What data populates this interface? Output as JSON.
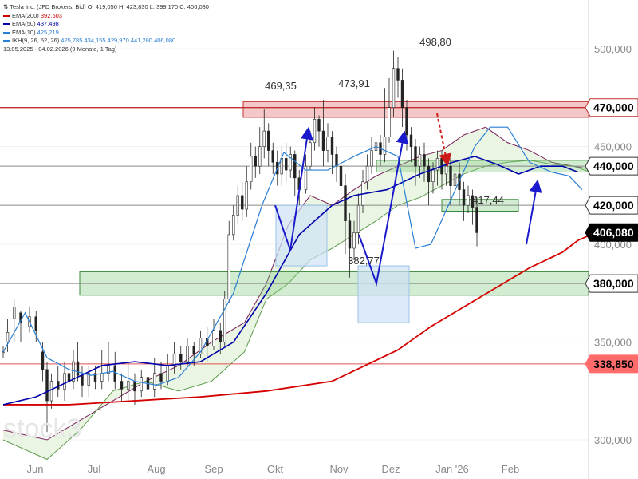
{
  "header": {
    "line1": "Tesla Inc. (JFD Brokers, Bid)  O: 419,050  H: 423,830  L: 399,170  C: 406,080",
    "range_text": "13.05.2025 - 04.02.2026  (9 Monate, 1 Tag)"
  },
  "legend": [
    {
      "label": "EMA(200)",
      "value": "392,603",
      "color": "#d40000"
    },
    {
      "label": "EMA(50)",
      "value": "437,498",
      "color": "#0000aa"
    },
    {
      "label": "EMA(10)",
      "value": "425,219",
      "color": "#2a7fd4"
    },
    {
      "label": "IKH(9, 26, 52, 26)",
      "value": "425,785  434,155  429,970  441,280  406,080",
      "color": "#2a7fd4"
    }
  ],
  "watermark": "stock3",
  "chart_data": {
    "type": "candlestick",
    "instrument": "Tesla Inc. (JFD Brokers, Bid)",
    "ohlc_last": {
      "open": 419.05,
      "high": 423.83,
      "low": 399.17,
      "close": 406.08
    },
    "x_months": [
      "Jun",
      "Jul",
      "Aug",
      "Sep",
      "Okt",
      "Nov",
      "Dez",
      "Jan '26",
      "Feb"
    ],
    "y_ticks": [
      300,
      350,
      400,
      450,
      500
    ],
    "y_tick_labels": [
      "300,000",
      "350,000",
      "400,000",
      "450,000",
      "500,000"
    ],
    "ylim": [
      280,
      525
    ],
    "price_tags": [
      {
        "value": 470.0,
        "label": "470,000"
      },
      {
        "value": 440.0,
        "label": "440,000"
      },
      {
        "value": 420.0,
        "label": "420,000"
      },
      {
        "value": 406.08,
        "label": "406,080",
        "current": true
      },
      {
        "value": 380.0,
        "label": "380,000"
      },
      {
        "value": 338.85,
        "label": "338,850",
        "red": true
      }
    ],
    "annotations": [
      {
        "label": "469,35",
        "value": 469.35
      },
      {
        "label": "473,91",
        "value": 473.91
      },
      {
        "label": "498,80",
        "value": 498.8
      },
      {
        "label": "382,77",
        "value": 382.77
      },
      {
        "label": "417,44",
        "value": 417.44
      }
    ],
    "zones": [
      {
        "name": "resistance",
        "from": 465,
        "to": 473,
        "color": "#e06060"
      },
      {
        "name": "support-440",
        "from": 437,
        "to": 443,
        "color": "#7ac97a"
      },
      {
        "name": "support-420",
        "from": 417,
        "to": 423,
        "color": "#7ac97a"
      },
      {
        "name": "support-380",
        "from": 374,
        "to": 386,
        "color": "#7ac97a"
      }
    ],
    "ema200": [
      [
        0,
        318
      ],
      [
        30,
        318
      ],
      [
        60,
        320
      ],
      [
        90,
        322
      ],
      [
        120,
        325
      ],
      [
        150,
        330
      ],
      [
        165,
        338
      ],
      [
        180,
        346
      ],
      [
        195,
        358
      ],
      [
        210,
        368
      ],
      [
        225,
        378
      ],
      [
        240,
        388
      ],
      [
        255,
        396
      ],
      [
        262,
        402
      ],
      [
        270,
        406
      ]
    ],
    "ema50": [
      [
        0,
        318
      ],
      [
        15,
        322
      ],
      [
        30,
        330
      ],
      [
        45,
        338
      ],
      [
        60,
        340
      ],
      [
        75,
        338
      ],
      [
        90,
        340
      ],
      [
        105,
        350
      ],
      [
        120,
        375
      ],
      [
        135,
        405
      ],
      [
        150,
        420
      ],
      [
        160,
        425
      ],
      [
        175,
        428
      ],
      [
        190,
        436
      ],
      [
        205,
        442
      ],
      [
        215,
        445
      ],
      [
        225,
        441
      ],
      [
        235,
        436
      ],
      [
        245,
        440
      ],
      [
        255,
        440
      ],
      [
        262,
        437
      ]
    ],
    "ema10": [
      [
        0,
        345
      ],
      [
        10,
        365
      ],
      [
        20,
        342
      ],
      [
        30,
        336
      ],
      [
        40,
        333
      ],
      [
        50,
        335
      ],
      [
        60,
        330
      ],
      [
        70,
        328
      ],
      [
        80,
        332
      ],
      [
        90,
        345
      ],
      [
        105,
        375
      ],
      [
        118,
        420
      ],
      [
        128,
        447
      ],
      [
        138,
        438
      ],
      [
        148,
        438
      ],
      [
        160,
        445
      ],
      [
        170,
        450
      ],
      [
        180,
        445
      ],
      [
        188,
        398
      ],
      [
        195,
        400
      ],
      [
        205,
        425
      ],
      [
        215,
        450
      ],
      [
        222,
        460
      ],
      [
        230,
        460
      ],
      [
        240,
        442
      ],
      [
        250,
        437
      ],
      [
        258,
        435
      ],
      [
        264,
        428
      ]
    ],
    "candles": [
      [
        0,
        345,
        345,
        342,
        348
      ],
      [
        2,
        350,
        355,
        345,
        362
      ],
      [
        5,
        362,
        368,
        350,
        372
      ],
      [
        8,
        365,
        360,
        350,
        366
      ],
      [
        12,
        358,
        363,
        355,
        368
      ],
      [
        15,
        363,
        356,
        350,
        366
      ],
      [
        18,
        345,
        336,
        330,
        350
      ],
      [
        20,
        336,
        320,
        304,
        340
      ],
      [
        22,
        320,
        330,
        316,
        334
      ],
      [
        25,
        330,
        326,
        322,
        338
      ],
      [
        28,
        326,
        334,
        320,
        340
      ],
      [
        30,
        334,
        330,
        325,
        340
      ],
      [
        32,
        330,
        340,
        326,
        346
      ],
      [
        34,
        340,
        333,
        330,
        350
      ],
      [
        36,
        333,
        328,
        322,
        338
      ],
      [
        39,
        328,
        334,
        322,
        338
      ],
      [
        42,
        334,
        330,
        326,
        338
      ],
      [
        45,
        330,
        334,
        326,
        346
      ],
      [
        48,
        334,
        338,
        330,
        350
      ],
      [
        51,
        338,
        330,
        326,
        345
      ],
      [
        54,
        330,
        326,
        320,
        334
      ],
      [
        57,
        326,
        330,
        320,
        340
      ],
      [
        60,
        330,
        325,
        318,
        334
      ],
      [
        63,
        325,
        332,
        322,
        336
      ],
      [
        66,
        332,
        326,
        320,
        338
      ],
      [
        69,
        326,
        334,
        322,
        342
      ],
      [
        72,
        334,
        330,
        326,
        340
      ],
      [
        75,
        330,
        338,
        328,
        344
      ],
      [
        78,
        338,
        344,
        334,
        350
      ],
      [
        81,
        344,
        340,
        336,
        348
      ],
      [
        84,
        340,
        348,
        338,
        352
      ],
      [
        87,
        348,
        344,
        338,
        350
      ],
      [
        90,
        344,
        352,
        342,
        356
      ],
      [
        93,
        352,
        348,
        340,
        358
      ],
      [
        96,
        348,
        356,
        346,
        362
      ],
      [
        99,
        356,
        350,
        344,
        360
      ],
      [
        101,
        350,
        372,
        348,
        376
      ],
      [
        103,
        372,
        405,
        370,
        412
      ],
      [
        105,
        405,
        415,
        402,
        420
      ],
      [
        107,
        415,
        425,
        410,
        430
      ],
      [
        109,
        425,
        418,
        412,
        432
      ],
      [
        111,
        418,
        432,
        414,
        440
      ],
      [
        113,
        432,
        445,
        428,
        452
      ],
      [
        115,
        445,
        440,
        434,
        450
      ],
      [
        117,
        440,
        450,
        436,
        460
      ],
      [
        119,
        450,
        458,
        444,
        469
      ],
      [
        121,
        458,
        448,
        440,
        462
      ],
      [
        123,
        448,
        442,
        436,
        452
      ],
      [
        125,
        442,
        436,
        430,
        448
      ],
      [
        127,
        436,
        444,
        430,
        450
      ],
      [
        129,
        444,
        438,
        432,
        452
      ],
      [
        131,
        438,
        446,
        434,
        450
      ],
      [
        133,
        446,
        434,
        425,
        448
      ],
      [
        135,
        434,
        428,
        420,
        438
      ],
      [
        138,
        428,
        440,
        426,
        446
      ],
      [
        140,
        440,
        452,
        438,
        458
      ],
      [
        142,
        452,
        464,
        448,
        470
      ],
      [
        144,
        464,
        458,
        450,
        466
      ],
      [
        146,
        458,
        448,
        440,
        474
      ],
      [
        148,
        448,
        455,
        442,
        462
      ],
      [
        150,
        455,
        446,
        436,
        458
      ],
      [
        152,
        446,
        440,
        432,
        450
      ],
      [
        154,
        440,
        430,
        420,
        444
      ],
      [
        156,
        430,
        412,
        395,
        436
      ],
      [
        158,
        412,
        398,
        383,
        416
      ],
      [
        160,
        398,
        406,
        392,
        412
      ],
      [
        162,
        406,
        420,
        400,
        426
      ],
      [
        164,
        420,
        432,
        416,
        438
      ],
      [
        166,
        432,
        440,
        428,
        446
      ],
      [
        168,
        440,
        448,
        436,
        455
      ],
      [
        170,
        448,
        452,
        444,
        460
      ],
      [
        172,
        452,
        446,
        440,
        456
      ],
      [
        174,
        446,
        455,
        442,
        480
      ],
      [
        176,
        455,
        470,
        452,
        485
      ],
      [
        178,
        470,
        490,
        465,
        499
      ],
      [
        180,
        490,
        484,
        475,
        496
      ],
      [
        182,
        484,
        470,
        460,
        490
      ],
      [
        184,
        470,
        456,
        448,
        474
      ],
      [
        186,
        456,
        450,
        442,
        460
      ],
      [
        188,
        450,
        440,
        430,
        454
      ],
      [
        190,
        440,
        446,
        434,
        450
      ],
      [
        192,
        446,
        440,
        432,
        452
      ],
      [
        194,
        440,
        432,
        420,
        444
      ],
      [
        196,
        432,
        438,
        426,
        442
      ],
      [
        198,
        438,
        444,
        430,
        448
      ],
      [
        200,
        444,
        436,
        428,
        448
      ],
      [
        202,
        436,
        440,
        430,
        446
      ],
      [
        204,
        440,
        430,
        420,
        444
      ],
      [
        206,
        430,
        436,
        424,
        440
      ],
      [
        208,
        436,
        428,
        420,
        442
      ],
      [
        210,
        428,
        420,
        412,
        432
      ],
      [
        212,
        420,
        425,
        416,
        430
      ],
      [
        214,
        425,
        419,
        410,
        428
      ],
      [
        216,
        419,
        406,
        399,
        424
      ]
    ],
    "cloud_a": [
      [
        0,
        305
      ],
      [
        20,
        300
      ],
      [
        35,
        310
      ],
      [
        50,
        320
      ],
      [
        65,
        330
      ],
      [
        80,
        338
      ],
      [
        95,
        350
      ],
      [
        110,
        360
      ],
      [
        120,
        380
      ],
      [
        130,
        410
      ],
      [
        140,
        425
      ],
      [
        150,
        420
      ],
      [
        160,
        428
      ],
      [
        170,
        435
      ],
      [
        180,
        440
      ],
      [
        190,
        445
      ],
      [
        200,
        448
      ],
      [
        210,
        456
      ],
      [
        220,
        460
      ],
      [
        230,
        452
      ],
      [
        240,
        448
      ],
      [
        250,
        442
      ],
      [
        260,
        440
      ],
      [
        270,
        438
      ]
    ],
    "cloud_b": [
      [
        0,
        300
      ],
      [
        20,
        290
      ],
      [
        35,
        305
      ],
      [
        50,
        325
      ],
      [
        65,
        330
      ],
      [
        80,
        325
      ],
      [
        95,
        330
      ],
      [
        110,
        345
      ],
      [
        120,
        372
      ],
      [
        130,
        380
      ],
      [
        140,
        392
      ],
      [
        150,
        398
      ],
      [
        160,
        405
      ],
      [
        170,
        412
      ],
      [
        180,
        420
      ],
      [
        190,
        424
      ],
      [
        200,
        430
      ],
      [
        210,
        436
      ],
      [
        220,
        440
      ],
      [
        230,
        442
      ],
      [
        240,
        443
      ],
      [
        250,
        441
      ],
      [
        260,
        440
      ],
      [
        270,
        436
      ]
    ],
    "xlabel": "",
    "ylabel": ""
  }
}
